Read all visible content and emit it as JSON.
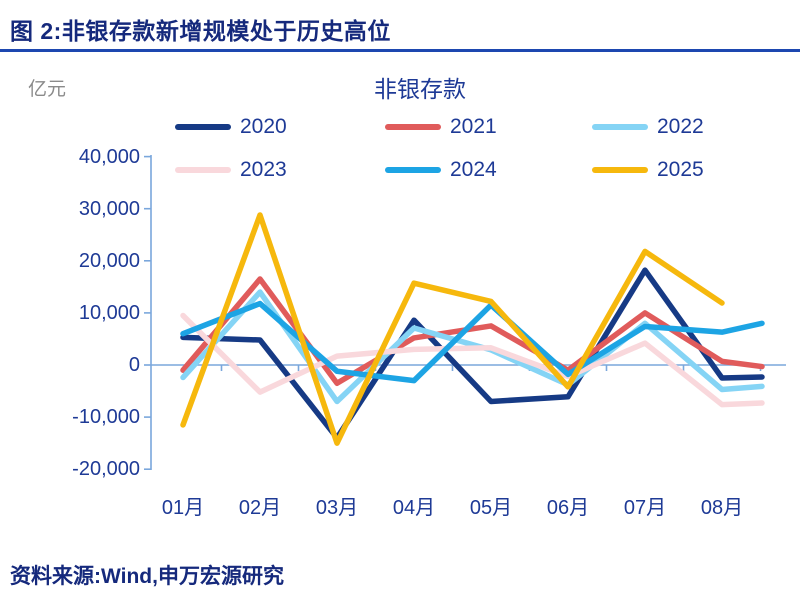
{
  "header": {
    "title": "图 2:非银存款新增规模处于历史高位"
  },
  "footer": {
    "source": "资料来源:Wind,申万宏源研究"
  },
  "chart_data": {
    "type": "line",
    "title": "非银存款",
    "unit_label": "亿元",
    "legend_position": "top",
    "grid": false,
    "ylim": [
      -20000,
      40000
    ],
    "categories": [
      "01月",
      "02月",
      "03月",
      "04月",
      "05月",
      "06月",
      "07月",
      "08月"
    ],
    "y_ticks": [
      {
        "label": "40,000",
        "value": 40000
      },
      {
        "label": "30,000",
        "value": 30000
      },
      {
        "label": "20,000",
        "value": 20000
      },
      {
        "label": "10,000",
        "value": 10000
      },
      {
        "label": "0",
        "value": 0
      },
      {
        "label": "-10,000",
        "value": -10000
      },
      {
        "label": "-20,000",
        "value": -20000
      }
    ],
    "axis_color": "#7aa7dc",
    "series": [
      {
        "name": "2020",
        "color": "#163a85",
        "values": [
          5300,
          4800,
          -14000,
          8600,
          -7000,
          -6100,
          18200,
          -2500
        ],
        "tail": -2300
      },
      {
        "name": "2021",
        "color": "#e05b5b",
        "values": [
          -1000,
          16500,
          -3500,
          5200,
          7500,
          -1000,
          10000,
          700
        ],
        "tail": -300
      },
      {
        "name": "2022",
        "color": "#85d4f5",
        "values": [
          -2400,
          14000,
          -7000,
          7100,
          2900,
          -3800,
          8000,
          -4700
        ],
        "tail": -4100
      },
      {
        "name": "2023",
        "color": "#f9d8dc",
        "values": [
          9500,
          -5200,
          1700,
          3000,
          3300,
          -2200,
          4200,
          -7600
        ],
        "tail": -7300
      },
      {
        "name": "2024",
        "color": "#1da4e4",
        "values": [
          6000,
          11800,
          -1200,
          -3000,
          11500,
          -1800,
          7400,
          6300
        ],
        "tail": 8000
      },
      {
        "name": "2025",
        "color": "#f6b80d",
        "values": [
          -11500,
          28800,
          -15000,
          15700,
          12200,
          -4200,
          21800,
          11900
        ],
        "tail": null
      }
    ]
  }
}
